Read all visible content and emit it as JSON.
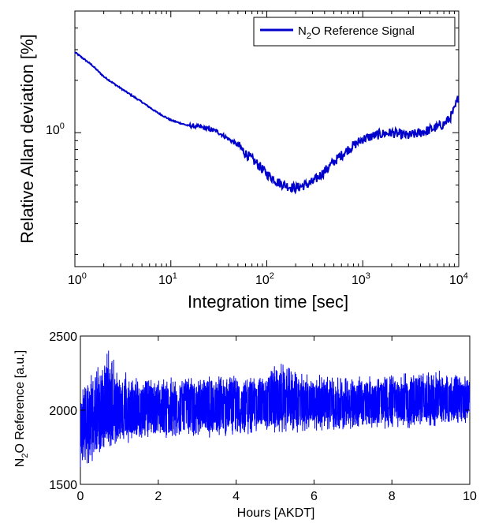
{
  "chart_data": [
    {
      "type": "line",
      "xscale": "log",
      "yscale": "log",
      "xlabel": "Integration time [sec]",
      "ylabel": "Relative Allan deviation [%]",
      "xlim": [
        1,
        10000
      ],
      "ylim": [
        0.17,
        5.0
      ],
      "x_ticks": [
        {
          "base": "10",
          "exp": "0",
          "value": 1
        },
        {
          "base": "10",
          "exp": "1",
          "value": 10
        },
        {
          "base": "10",
          "exp": "2",
          "value": 100
        },
        {
          "base": "10",
          "exp": "3",
          "value": 1000
        },
        {
          "base": "10",
          "exp": "4",
          "value": 10000
        }
      ],
      "y_ticks": [
        {
          "base": "10",
          "exp": "0",
          "value": 1
        }
      ],
      "legend": {
        "position": "top-right",
        "entries": [
          {
            "pre": "N",
            "sub": "2",
            "post": "O Reference Signal"
          }
        ]
      },
      "series": [
        {
          "color": "#0000cc",
          "x": [
            1,
            1.5,
            2,
            3,
            5,
            7,
            10,
            15,
            20,
            30,
            40,
            50,
            60,
            80,
            100,
            130,
            170,
            200,
            250,
            300,
            400,
            500,
            700,
            1000,
            1500,
            2000,
            3000,
            4000,
            5000,
            6000,
            7000,
            8000,
            9000,
            10000
          ],
          "y": [
            2.9,
            2.45,
            2.1,
            1.8,
            1.5,
            1.32,
            1.18,
            1.1,
            1.08,
            1.02,
            0.92,
            0.85,
            0.76,
            0.66,
            0.58,
            0.52,
            0.49,
            0.48,
            0.5,
            0.52,
            0.6,
            0.68,
            0.8,
            0.92,
            0.98,
            1.0,
            0.96,
            1.0,
            1.04,
            1.08,
            1.12,
            1.2,
            1.35,
            1.62
          ]
        }
      ]
    },
    {
      "type": "line",
      "xlabel": "Hours [AKDT]",
      "ylabel": {
        "pre": "N",
        "sub": "2",
        "post": "O Reference  [a.u.]"
      },
      "xlim": [
        0,
        10
      ],
      "ylim": [
        1500,
        2500
      ],
      "x_ticks": [
        0,
        2,
        4,
        6,
        8,
        10
      ],
      "y_ticks": [
        1500,
        2000,
        2500
      ],
      "series": [
        {
          "color": "#0000ff",
          "x": [
            0,
            0.1,
            0.3,
            0.5,
            0.7,
            1,
            1.5,
            2,
            3,
            4,
            4.8,
            5,
            5.5,
            6,
            7,
            8,
            9,
            10
          ],
          "center": [
            1900,
            1910,
            1930,
            1950,
            1960,
            1980,
            2000,
            2000,
            2010,
            2020,
            2030,
            2040,
            2040,
            2040,
            2040,
            2050,
            2060,
            2080
          ],
          "upper": [
            2180,
            2250,
            2280,
            2320,
            2470,
            2270,
            2240,
            2230,
            2240,
            2250,
            2250,
            2350,
            2280,
            2250,
            2240,
            2250,
            2280,
            2230
          ],
          "lower": [
            1520,
            1580,
            1620,
            1680,
            1720,
            1760,
            1790,
            1800,
            1810,
            1820,
            1830,
            1840,
            1840,
            1850,
            1860,
            1870,
            1880,
            1900
          ]
        }
      ]
    }
  ]
}
